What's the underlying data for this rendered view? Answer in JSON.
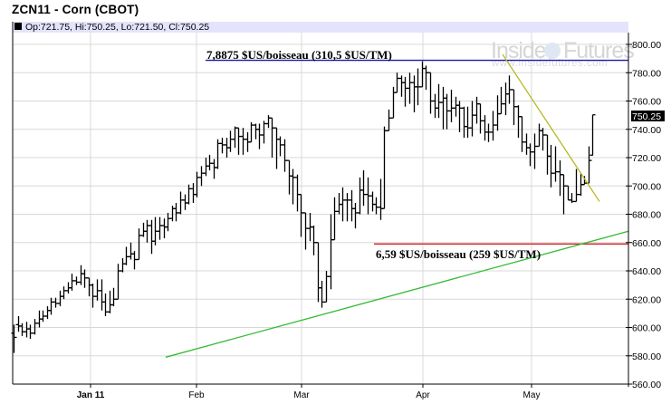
{
  "header": {
    "title": "ZCN11 - Corn (CBOT)",
    "ohlc": "Op:721.75, Hi:750.25, Lo:721.50, Cl:750.25"
  },
  "watermark": {
    "brand_left": "Inside",
    "brand_right": "Futures",
    "url": "www.insidefutures.com"
  },
  "colors": {
    "resistance_line": "#1a1aa6",
    "support_line": "#d62020",
    "uptrend_line": "#33bb33",
    "downtrend_line": "#b8b820",
    "bars": "#000000",
    "grid": "#d8d8d8",
    "header_strip": "#e3e3fb"
  },
  "annotations": {
    "high_label": "7,8875 $US/boisseau (310,5 $US/TM)",
    "low_label": "6,59 $US/boisseau (259 $US/TM)"
  },
  "last_price_label": "750.25",
  "chart_data": {
    "type": "ohlc",
    "title": "ZCN11 - Corn (CBOT)",
    "subtitle": "Op:721.75, Hi:750.25, Lo:721.50, Cl:750.25",
    "xlabel": "",
    "ylabel": "",
    "ylim": [
      560,
      810
    ],
    "y_ticks": [
      "560.00",
      "580.00",
      "600.00",
      "620.00",
      "640.00",
      "660.00",
      "680.00",
      "700.00",
      "720.00",
      "740.00",
      "760.00",
      "780.00",
      "800.00"
    ],
    "x_ticks": [
      {
        "label": "Jan 11",
        "x": 100,
        "bold": true
      },
      {
        "label": "Feb",
        "x": 217,
        "bold": false
      },
      {
        "label": "Mar",
        "x": 333,
        "bold": false
      },
      {
        "label": "Apr",
        "x": 467,
        "bold": false
      },
      {
        "label": "May",
        "x": 587,
        "bold": false
      }
    ],
    "grid": true,
    "price_axis_side": "right",
    "last_price": 750.25,
    "horizontal_lines": [
      {
        "name": "high",
        "value": 788.75,
        "x_start": 227,
        "label": "7,8875 $US/boisseau (310,5 $US/TM)"
      },
      {
        "name": "low",
        "value": 659,
        "x_start": 413,
        "label": "6,59 $US/boisseau (259 $US/TM)"
      }
    ],
    "trend_lines": [
      {
        "name": "uptrend",
        "x1": 183,
        "y1_value": 579,
        "x2": 694,
        "y2_value": 668
      },
      {
        "name": "downtrend",
        "x1": 555,
        "y1_value": 793,
        "x2": 662,
        "y2_value": 689
      }
    ],
    "bars_x_start": 15,
    "bars_x_step": 4.6,
    "bars": [
      [
        596,
        593,
        602,
        582
      ],
      [
        602,
        601,
        608,
        597
      ],
      [
        601,
        597,
        603,
        594
      ],
      [
        597,
        599,
        604,
        593
      ],
      [
        599,
        596,
        602,
        592
      ],
      [
        596,
        603,
        606,
        595
      ],
      [
        603,
        606,
        612,
        600
      ],
      [
        606,
        608,
        612,
        604
      ],
      [
        608,
        612,
        615,
        606
      ],
      [
        612,
        618,
        621,
        609
      ],
      [
        618,
        617,
        621,
        614
      ],
      [
        617,
        622,
        626,
        615
      ],
      [
        622,
        626,
        629,
        620
      ],
      [
        626,
        628,
        632,
        624
      ],
      [
        628,
        633,
        638,
        626
      ],
      [
        633,
        632,
        636,
        630
      ],
      [
        632,
        638,
        644,
        630
      ],
      [
        638,
        635,
        641,
        628
      ],
      [
        635,
        630,
        633,
        622
      ],
      [
        630,
        622,
        631,
        614
      ],
      [
        622,
        626,
        634,
        619
      ],
      [
        626,
        618,
        634,
        612
      ],
      [
        618,
        611,
        624,
        608
      ],
      [
        611,
        616,
        626,
        610
      ],
      [
        616,
        620,
        628,
        615
      ],
      [
        620,
        640,
        645,
        620
      ],
      [
        640,
        645,
        649,
        639
      ],
      [
        645,
        650,
        657,
        644
      ],
      [
        650,
        652,
        660,
        648
      ],
      [
        652,
        648,
        654,
        641
      ],
      [
        648,
        665,
        670,
        648
      ],
      [
        665,
        668,
        674,
        664
      ],
      [
        668,
        672,
        676,
        660
      ],
      [
        672,
        661,
        676,
        652
      ],
      [
        661,
        668,
        678,
        658
      ],
      [
        668,
        672,
        678,
        662
      ],
      [
        672,
        671,
        677,
        663
      ],
      [
        671,
        677,
        681,
        668
      ],
      [
        677,
        684,
        686,
        675
      ],
      [
        684,
        681,
        688,
        675
      ],
      [
        681,
        690,
        696,
        680
      ],
      [
        690,
        688,
        694,
        683
      ],
      [
        688,
        698,
        701,
        687
      ],
      [
        698,
        694,
        702,
        688
      ],
      [
        694,
        706,
        710,
        692
      ],
      [
        706,
        709,
        714,
        700
      ],
      [
        709,
        714,
        720,
        707
      ],
      [
        714,
        716,
        722,
        711
      ],
      [
        716,
        713,
        719,
        705
      ],
      [
        713,
        730,
        733,
        712
      ],
      [
        730,
        729,
        734,
        723
      ],
      [
        729,
        727,
        734,
        720
      ],
      [
        727,
        733,
        739,
        724
      ],
      [
        733,
        741,
        742,
        727
      ],
      [
        741,
        735,
        738,
        722
      ],
      [
        735,
        733,
        741,
        722
      ],
      [
        733,
        731,
        738,
        724
      ],
      [
        731,
        743,
        745,
        731
      ],
      [
        743,
        740,
        744,
        733
      ],
      [
        740,
        736,
        744,
        726
      ],
      [
        736,
        744,
        746,
        730
      ],
      [
        744,
        748,
        750,
        741
      ],
      [
        748,
        741,
        745,
        720
      ],
      [
        741,
        733,
        735,
        712
      ],
      [
        733,
        729,
        735,
        721
      ],
      [
        729,
        718,
        733,
        710
      ],
      [
        718,
        707,
        712,
        694
      ],
      [
        707,
        706,
        712,
        687
      ],
      [
        706,
        694,
        708,
        682
      ],
      [
        694,
        681,
        686,
        664
      ],
      [
        681,
        670,
        679,
        655
      ],
      [
        670,
        671,
        681,
        661
      ],
      [
        671,
        660,
        672,
        651
      ],
      [
        660,
        628,
        647,
        618
      ],
      [
        628,
        618,
        633,
        614
      ],
      [
        618,
        636,
        640,
        618
      ],
      [
        636,
        662,
        680,
        627
      ],
      [
        662,
        682,
        692,
        674
      ],
      [
        682,
        687,
        695,
        680
      ],
      [
        687,
        690,
        699,
        675
      ],
      [
        690,
        690,
        695,
        675
      ],
      [
        690,
        684,
        697,
        675
      ],
      [
        684,
        681,
        688,
        670
      ],
      [
        681,
        697,
        706,
        680
      ],
      [
        697,
        694,
        711,
        686
      ],
      [
        694,
        693,
        706,
        680
      ],
      [
        693,
        687,
        696,
        682
      ],
      [
        687,
        685,
        692,
        680
      ],
      [
        685,
        684,
        705,
        676
      ],
      [
        684,
        739,
        742,
        730
      ],
      [
        739,
        748,
        754,
        745
      ],
      [
        748,
        766,
        770,
        760
      ],
      [
        766,
        776,
        780,
        770
      ],
      [
        776,
        773,
        778,
        763
      ],
      [
        773,
        769,
        777,
        756
      ],
      [
        769,
        773,
        780,
        758
      ],
      [
        773,
        770,
        778,
        752
      ],
      [
        770,
        770,
        783,
        757
      ],
      [
        770,
        783,
        788,
        773
      ],
      [
        783,
        780,
        785,
        768
      ],
      [
        780,
        760,
        771,
        751
      ],
      [
        760,
        755,
        765,
        748
      ],
      [
        755,
        759,
        772,
        748
      ],
      [
        759,
        762,
        770,
        740
      ],
      [
        762,
        753,
        765,
        740
      ],
      [
        753,
        755,
        768,
        745
      ],
      [
        755,
        757,
        763,
        749
      ],
      [
        757,
        755,
        760,
        738
      ],
      [
        755,
        742,
        756,
        734
      ],
      [
        742,
        741,
        756,
        734
      ],
      [
        741,
        750,
        760,
        735
      ],
      [
        750,
        758,
        763,
        744
      ],
      [
        758,
        746,
        752,
        737
      ],
      [
        746,
        738,
        750,
        732
      ],
      [
        738,
        738,
        744,
        731
      ],
      [
        738,
        743,
        753,
        732
      ],
      [
        743,
        751,
        764,
        739
      ],
      [
        751,
        758,
        770,
        754
      ],
      [
        758,
        765,
        773,
        750
      ],
      [
        765,
        768,
        778,
        758
      ],
      [
        768,
        756,
        766,
        743
      ],
      [
        756,
        749,
        757,
        734
      ],
      [
        749,
        731,
        743,
        724
      ],
      [
        731,
        727,
        737,
        722
      ],
      [
        727,
        724,
        730,
        714
      ],
      [
        724,
        728,
        737,
        712
      ],
      [
        728,
        739,
        744,
        734
      ],
      [
        739,
        736,
        741,
        725
      ],
      [
        736,
        721,
        730,
        708
      ],
      [
        721,
        709,
        729,
        699
      ],
      [
        709,
        710,
        728,
        703
      ],
      [
        710,
        708,
        718,
        693
      ],
      [
        708,
        700,
        708,
        680
      ],
      [
        700,
        690,
        692,
        690
      ],
      [
        690,
        689,
        695,
        688
      ],
      [
        689,
        694,
        712,
        690
      ],
      [
        694,
        701,
        709,
        693
      ],
      [
        701,
        702,
        707,
        701
      ],
      [
        702,
        718,
        728,
        707
      ],
      [
        721.75,
        750.25,
        750.25,
        721.5
      ]
    ]
  }
}
